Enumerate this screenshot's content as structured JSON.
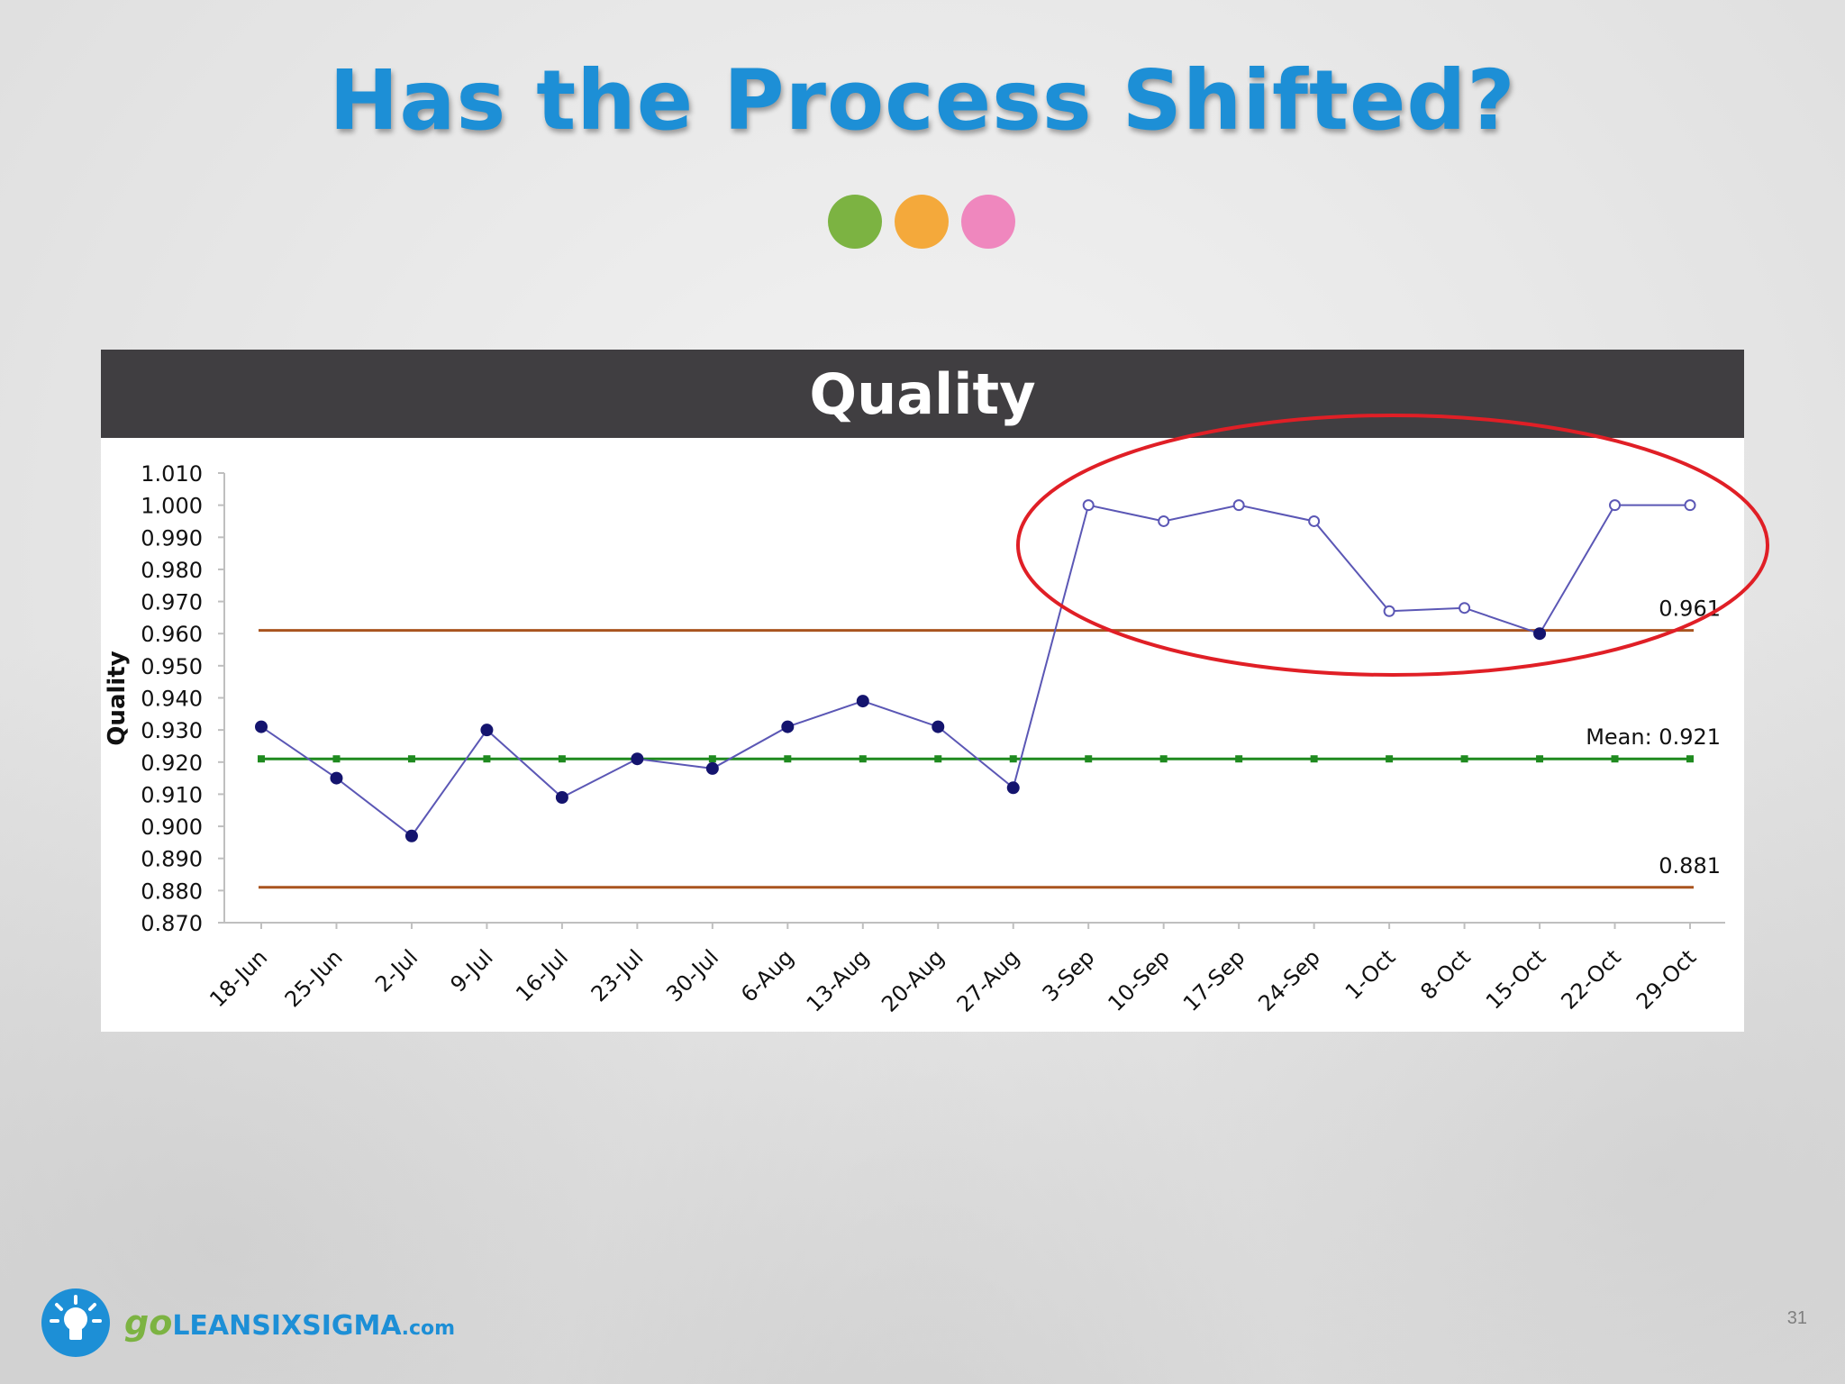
{
  "slide": {
    "title": "Has the Process Shifted?",
    "dots": [
      "#7cb342",
      "#f4a93b",
      "#ef87be"
    ],
    "page_number": "31",
    "logo": {
      "go": "go",
      "name": "LEANSIXSIGMA",
      "suffix": ".com"
    }
  },
  "chart_data": {
    "type": "line",
    "title": "Quality",
    "ylabel": "Quality",
    "xlabel": "",
    "ylim": [
      0.87,
      1.01
    ],
    "yticks": [
      "1.010",
      "1.000",
      "0.990",
      "0.980",
      "0.970",
      "0.960",
      "0.950",
      "0.940",
      "0.930",
      "0.920",
      "0.910",
      "0.900",
      "0.890",
      "0.880",
      "0.870"
    ],
    "categories": [
      "18-Jun",
      "25-Jun",
      "2-Jul",
      "9-Jul",
      "16-Jul",
      "23-Jul",
      "30-Jul",
      "6-Aug",
      "13-Aug",
      "20-Aug",
      "27-Aug",
      "3-Sep",
      "10-Sep",
      "17-Sep",
      "24-Sep",
      "1-Oct",
      "8-Oct",
      "15-Oct",
      "22-Oct",
      "29-Oct"
    ],
    "series": [
      {
        "values": [
          0.931,
          0.915,
          0.897,
          0.93,
          0.909,
          0.921,
          0.918,
          0.931,
          0.939,
          0.931,
          0.912,
          1.0,
          0.995,
          1.0,
          0.995,
          0.967,
          0.968,
          0.96,
          1.0,
          1.0
        ],
        "color": "#5b57b5",
        "filled_markers": [
          true,
          true,
          true,
          true,
          true,
          true,
          true,
          true,
          true,
          true,
          true,
          false,
          false,
          false,
          false,
          false,
          false,
          true,
          false,
          false
        ]
      }
    ],
    "reference_lines": [
      {
        "value": 0.961,
        "label": "0.961",
        "color": "#a9541f"
      },
      {
        "value": 0.921,
        "label": "Mean: 0.921",
        "color": "#1f8a1f"
      },
      {
        "value": 0.881,
        "label": "0.881",
        "color": "#a9541f"
      }
    ],
    "highlight": {
      "shape": "ellipse",
      "color": "#e01f26"
    },
    "grid": false,
    "legend": "none"
  }
}
